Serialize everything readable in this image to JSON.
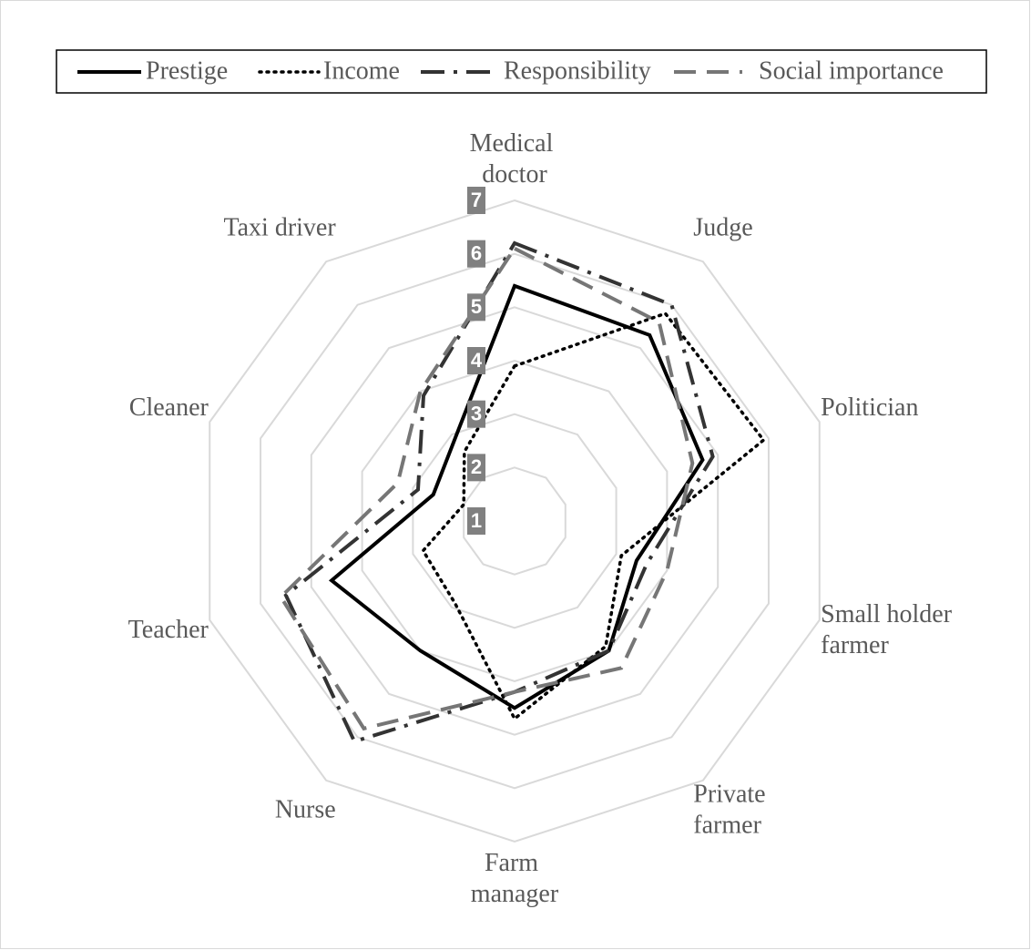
{
  "chart_data": {
    "type": "radar",
    "categories": [
      "Medical doctor",
      "Judge",
      "Politician",
      "Small holder farmer",
      "Private farmer",
      "Farm manager",
      "Nurse",
      "Teacher",
      "Cleaner",
      "Taxi driver"
    ],
    "series": [
      {
        "name": "Prestige",
        "color": "#000000",
        "values": [
          5.4,
          5.3,
          4.7,
          3.4,
          4.0,
          4.5,
          4.0,
          4.6,
          2.6,
          2.9
        ]
      },
      {
        "name": "Income",
        "color": "#000000",
        "values": [
          3.9,
          5.8,
          5.9,
          3.1,
          3.9,
          4.7,
          2.9,
          2.8,
          2.0,
          2.6
        ]
      },
      {
        "name": "Responsibility",
        "color": "#333333",
        "values": [
          6.2,
          6.0,
          4.9,
          3.6,
          4.0,
          4.2,
          6.1,
          5.5,
          2.9,
          3.9
        ]
      },
      {
        "name": "Social importance",
        "color": "#767676",
        "values": [
          6.1,
          5.6,
          4.5,
          4.0,
          4.4,
          4.2,
          5.8,
          5.6,
          3.3,
          4.0
        ]
      }
    ],
    "ylim": [
      1,
      7
    ],
    "yticks": [
      1,
      2,
      3,
      4,
      5,
      6,
      7
    ],
    "grid": true,
    "legend": "top"
  }
}
